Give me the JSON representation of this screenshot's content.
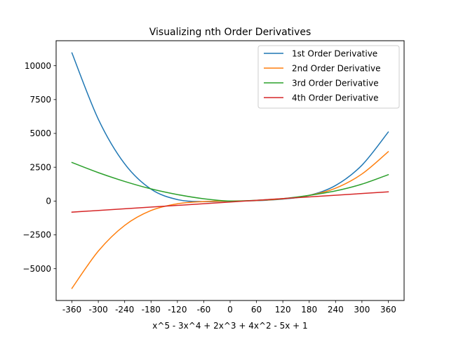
{
  "chart_data": {
    "type": "line",
    "title": "Visualizing nth Order Derivatives",
    "xlabel": "x^5 - 3x^4 + 2x^3 + 4x^2 - 5x + 1",
    "ylabel": "",
    "xlim": [
      -396,
      396
    ],
    "ylim": [
      -7350,
      11850
    ],
    "x_ticks": [
      -360,
      -300,
      -240,
      -180,
      -120,
      -60,
      0,
      60,
      120,
      180,
      240,
      300,
      360
    ],
    "x_tick_labels": [
      "-360",
      "-300",
      "-240",
      "-180",
      "-120",
      "-60",
      "0",
      "60",
      "120",
      "180",
      "240",
      "300",
      "360"
    ],
    "y_ticks": [
      -5000,
      -2500,
      0,
      2500,
      5000,
      7500,
      10000
    ],
    "y_tick_labels": [
      "−5000",
      "−2500",
      "0",
      "2500",
      "5000",
      "7500",
      "10000"
    ],
    "grid": false,
    "legend_placement": "top-right",
    "series": [
      {
        "name": "1st Order Derivative",
        "color": "#1f77b4",
        "x": [
          -360,
          -300,
          -240,
          -180,
          -120,
          -60,
          0,
          60,
          120,
          180,
          240,
          300,
          360
        ],
        "y": [
          10950,
          6050,
          2750,
          880,
          110,
          -40,
          0,
          30,
          140,
          420,
          1150,
          2650,
          5100
        ]
      },
      {
        "name": "2nd Order Derivative",
        "color": "#ff7f0e",
        "x": [
          -360,
          -300,
          -240,
          -180,
          -120,
          -60,
          0,
          60,
          120,
          180,
          240,
          300,
          360
        ],
        "y": [
          -6450,
          -3700,
          -1800,
          -700,
          -200,
          -40,
          0,
          40,
          160,
          420,
          950,
          2000,
          3650
        ]
      },
      {
        "name": "3rd Order Derivative",
        "color": "#2ca02c",
        "x": [
          -360,
          -300,
          -240,
          -180,
          -120,
          -60,
          0,
          60,
          120,
          180,
          240,
          300,
          360
        ],
        "y": [
          2850,
          2100,
          1450,
          900,
          480,
          170,
          0,
          60,
          180,
          420,
          750,
          1250,
          1950
        ]
      },
      {
        "name": "4th Order Derivative",
        "color": "#d62728",
        "x": [
          -360,
          360
        ],
        "y": [
          -820,
          680
        ]
      }
    ]
  }
}
